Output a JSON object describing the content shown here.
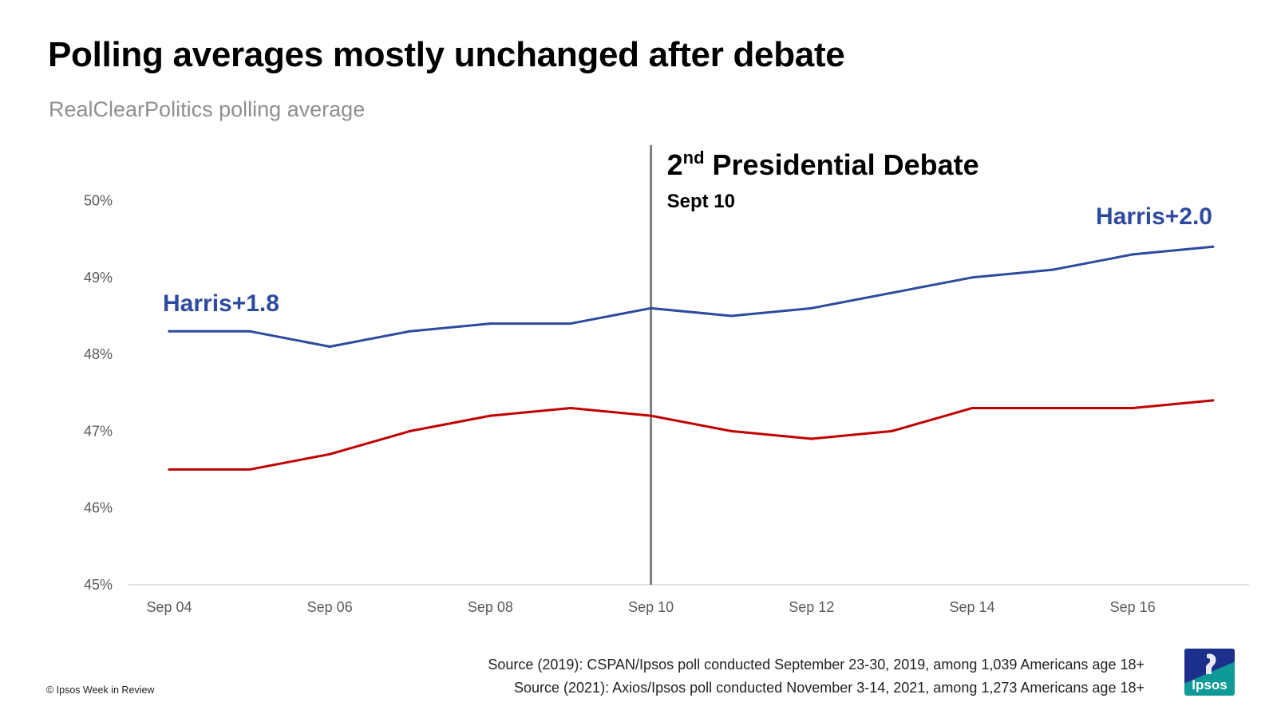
{
  "title": "Polling averages mostly unchanged after debate",
  "subtitle": "RealClearPolitics polling average",
  "chart_data": {
    "type": "line",
    "x": [
      "Sep 04",
      "Sep 05",
      "Sep 06",
      "Sep 07",
      "Sep 08",
      "Sep 09",
      "Sep 10",
      "Sep 11",
      "Sep 12",
      "Sep 13",
      "Sep 14",
      "Sep 15",
      "Sep 16",
      "Sep 17"
    ],
    "x_tick_labels": [
      "Sep 04",
      "Sep 06",
      "Sep 08",
      "Sep 10",
      "Sep 12",
      "Sep 14",
      "Sep 16"
    ],
    "y_tick_labels": [
      "45%",
      "46%",
      "47%",
      "48%",
      "49%",
      "50%"
    ],
    "ylim": [
      45,
      50
    ],
    "grid": false,
    "series": [
      {
        "color": "#2e4a9e",
        "values": [
          48.3,
          48.3,
          48.1,
          48.3,
          48.4,
          48.4,
          48.6,
          48.5,
          48.6,
          48.8,
          49.0,
          49.1,
          49.3,
          49.4
        ]
      },
      {
        "color": "#c00000",
        "values": [
          46.5,
          46.5,
          46.7,
          47.0,
          47.2,
          47.3,
          47.2,
          47.0,
          46.9,
          47.0,
          47.3,
          47.3,
          47.3,
          47.4
        ]
      }
    ],
    "annotations": {
      "debate_line_at": "Sep 10",
      "debate_title_main": "2",
      "debate_title_sup": "nd",
      "debate_title_rest": " Presidential Debate",
      "debate_date": "Sept 10",
      "start_label": "Harris+1.8",
      "end_label": "Harris+2.0",
      "label_color": "#2e4a9e"
    }
  },
  "footer": {
    "source_2019": "Source (2019): CSPAN/Ipsos poll conducted September 23-30, 2019, among 1,039 Americans age 18+",
    "source_2021": "Source (2021): Axios/Ipsos poll conducted November 3-14, 2021, among 1,273 Americans age 18+",
    "copyright": "© Ipsos Week in Review",
    "logo_text": "Ipsos"
  }
}
